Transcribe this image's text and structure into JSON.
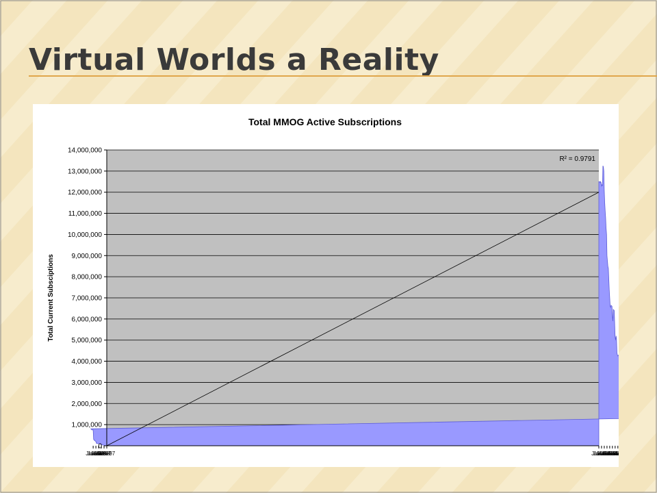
{
  "slide": {
    "title": "Virtual Worlds a Reality",
    "colors": {
      "background": "#f7eccd",
      "stripe": "#eed9a4",
      "accent": "#e0a64b",
      "title": "#3a3a3a"
    }
  },
  "chart_data": {
    "type": "area",
    "title": "Total MMOG Active Subscriptions",
    "xlabel": "",
    "ylabel": "Total Current Subsciptions",
    "ylim": [
      0,
      14000000
    ],
    "y_ticks": [
      0,
      1000000,
      2000000,
      3000000,
      4000000,
      5000000,
      6000000,
      7000000,
      8000000,
      9000000,
      10000000,
      11000000,
      12000000,
      13000000,
      14000000
    ],
    "y_tick_labels": [
      "0",
      "1,000,000",
      "2,000,000",
      "3,000,000",
      "4,000,000",
      "5,000,000",
      "6,000,000",
      "7,000,000",
      "8,000,000",
      "9,000,000",
      "10,000,000",
      "11,000,000",
      "12,000,000",
      "13,000,000",
      "14,000,000"
    ],
    "x_tick_labels": [
      "Jan-97",
      "Jul-97",
      "Jan-98",
      "Jul-98",
      "Jan-99",
      "Jul-99",
      "Jan-00",
      "Jul-00",
      "Jan-01",
      "Jul-01",
      "Jan-02",
      "Jul-02",
      "Jan-03",
      "Jul-03",
      "Jan-04",
      "Jul-04",
      "Jan-05",
      "Jul-05",
      "Jan-06",
      "Jul-06"
    ],
    "grid": true,
    "legend": "none",
    "colors": {
      "area": "#9999ff",
      "plot_background": "#c0c0c0",
      "trendline": "#000000",
      "gridlines": "#000000"
    },
    "series": [
      {
        "x": [
          "Jan-97",
          "Apr-97",
          "Jul-97",
          "Oct-97",
          "Jan-98",
          "Apr-98",
          "Jul-98",
          "Oct-98",
          "Dec-98",
          "Jan-99",
          "Apr-99",
          "Jun-99",
          "Jul-99",
          "Oct-99",
          "Dec-99",
          "Jan-00",
          "Feb-00",
          "Apr-00",
          "Jul-00",
          "Aug-00",
          "Sep-00",
          "Oct-00",
          "Jan-01",
          "Feb-01",
          "May-01",
          "Jun-01",
          "Jul-01",
          "Aug-01",
          "Sep-01",
          "Dec-01",
          "Jan-02",
          "Mar-02",
          "May-02",
          "Jul-02",
          "Sep-02",
          "Nov-02",
          "Jan-03",
          "Feb-03",
          "Mar-03",
          "Apr-03",
          "May-03",
          "Jun-03",
          "Jul-03",
          "Sep-03",
          "Nov-03",
          "Dec-03",
          "Jan-04",
          "Feb-04",
          "Apr-04",
          "May-04",
          "Jun-04",
          "Jul-04",
          "Aug-04",
          "Oct-04",
          "Nov-04",
          "Jan-05",
          "Feb-05",
          "Mar-05",
          "Apr-05",
          "May-05",
          "Jun-05",
          "Jul-05",
          "Aug-05",
          "Sep-05",
          "Oct-05",
          "Nov-05",
          "Dec-05",
          "Jan-06",
          "Feb-06",
          "Mar-06",
          "Apr-06",
          "May-06",
          "Jun-06",
          "Jul-06"
        ],
        "values": [
          0,
          0,
          20000,
          40000,
          60000,
          80000,
          100000,
          100000,
          120000,
          200000,
          250000,
          300000,
          750000,
          750000,
          800000,
          1300000,
          1350000,
          1450000,
          1550000,
          1600000,
          2500000,
          2500000,
          2650000,
          2750000,
          2850000,
          2900000,
          3600000,
          3700000,
          3550000,
          3550000,
          3900000,
          4050000,
          4200000,
          4200000,
          4250000,
          4300000,
          4250000,
          4300000,
          4400000,
          5050000,
          5200000,
          5000000,
          5150000,
          6400000,
          6450000,
          5900000,
          6100000,
          6600000,
          6650000,
          6550000,
          6600000,
          7000000,
          7400000,
          8400000,
          8500000,
          9000000,
          10000000,
          10300000,
          10800000,
          11100000,
          11500000,
          12100000,
          13000000,
          13200000,
          13250000,
          12300000,
          12350000,
          12300000,
          12450000,
          12500000,
          12450000,
          12500000,
          12500000,
          12500000
        ]
      }
    ],
    "trendline": {
      "r_squared_label": "R² = 0.9791",
      "start_value": 0,
      "end_value": 12000000
    }
  }
}
